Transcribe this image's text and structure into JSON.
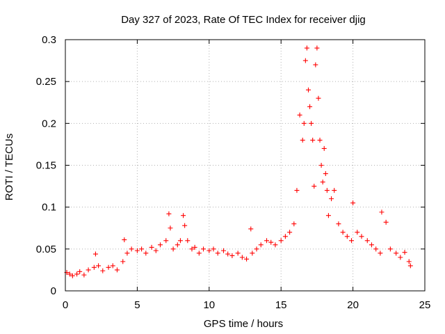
{
  "chart_data": {
    "type": "scatter",
    "title": "Day 327 of 2023, Rate Of TEC Index for receiver djig",
    "xlabel": "GPS time / hours",
    "ylabel": "ROTI / TECUs",
    "xlim": [
      0,
      25
    ],
    "ylim": [
      0,
      0.3
    ],
    "xticks": [
      0,
      5,
      10,
      15,
      20,
      25
    ],
    "xtick_labels": [
      "0",
      "5",
      "10",
      "15",
      "20",
      "25"
    ],
    "yticks": [
      0,
      0.05,
      0.1,
      0.15,
      0.2,
      0.25,
      0.3
    ],
    "ytick_labels": [
      "0",
      "0.05",
      "0.1",
      "0.15",
      "0.2",
      "0.25",
      "0.3"
    ],
    "grid": true,
    "marker": "+",
    "series": [
      {
        "name": "ROTI",
        "color": "#ff0000",
        "x": [
          0.1,
          0.3,
          0.5,
          0.8,
          1.0,
          1.3,
          1.6,
          2.0,
          2.1,
          2.3,
          2.6,
          3.0,
          3.3,
          3.6,
          4.0,
          4.1,
          4.3,
          4.6,
          5.0,
          5.3,
          5.6,
          6.0,
          6.3,
          6.6,
          7.0,
          7.2,
          7.3,
          7.5,
          7.8,
          8.0,
          8.2,
          8.3,
          8.5,
          8.8,
          9.0,
          9.3,
          9.6,
          10.0,
          10.3,
          10.6,
          11.0,
          11.3,
          11.6,
          12.0,
          12.3,
          12.6,
          12.9,
          13.0,
          13.3,
          13.6,
          14.0,
          14.3,
          14.6,
          15.0,
          15.3,
          15.6,
          15.9,
          16.1,
          16.3,
          16.5,
          16.6,
          16.7,
          16.8,
          16.9,
          17.0,
          17.1,
          17.2,
          17.3,
          17.4,
          17.5,
          17.6,
          17.7,
          17.8,
          17.9,
          18.0,
          18.1,
          18.2,
          18.3,
          18.5,
          18.7,
          19.0,
          19.3,
          19.6,
          19.9,
          20.0,
          20.3,
          20.6,
          21.0,
          21.3,
          21.6,
          21.9,
          22.0,
          22.3,
          22.6,
          23.0,
          23.3,
          23.6,
          23.9,
          24.0
        ],
        "y": [
          0.022,
          0.02,
          0.018,
          0.02,
          0.023,
          0.019,
          0.025,
          0.028,
          0.044,
          0.03,
          0.024,
          0.028,
          0.03,
          0.025,
          0.035,
          0.061,
          0.045,
          0.05,
          0.048,
          0.05,
          0.045,
          0.052,
          0.048,
          0.055,
          0.06,
          0.092,
          0.075,
          0.05,
          0.055,
          0.06,
          0.09,
          0.078,
          0.06,
          0.05,
          0.052,
          0.045,
          0.05,
          0.048,
          0.05,
          0.045,
          0.048,
          0.044,
          0.042,
          0.045,
          0.04,
          0.038,
          0.074,
          0.045,
          0.05,
          0.055,
          0.06,
          0.058,
          0.055,
          0.06,
          0.065,
          0.07,
          0.08,
          0.12,
          0.21,
          0.18,
          0.2,
          0.275,
          0.29,
          0.24,
          0.22,
          0.2,
          0.18,
          0.125,
          0.27,
          0.29,
          0.23,
          0.18,
          0.15,
          0.13,
          0.17,
          0.14,
          0.12,
          0.09,
          0.11,
          0.12,
          0.08,
          0.07,
          0.065,
          0.06,
          0.105,
          0.07,
          0.065,
          0.06,
          0.055,
          0.05,
          0.045,
          0.094,
          0.082,
          0.05,
          0.045,
          0.04,
          0.046,
          0.035,
          0.03
        ]
      }
    ]
  }
}
